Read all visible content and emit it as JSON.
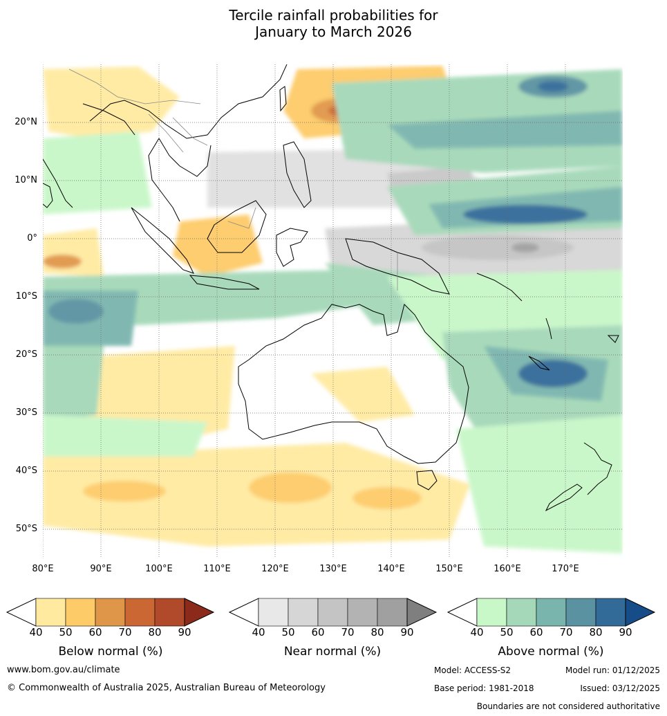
{
  "title_line1": "Tercile rainfall probabilities for",
  "title_line2": "January to March 2026",
  "latitude_labels": [
    "20°N",
    "10°N",
    "0°",
    "10°S",
    "20°S",
    "30°S",
    "40°S",
    "50°S"
  ],
  "longitude_labels": [
    "80°E",
    "90°E",
    "100°E",
    "110°E",
    "120°E",
    "130°E",
    "140°E",
    "150°E",
    "160°E",
    "170°E"
  ],
  "legends": [
    {
      "title": "Below normal (%)",
      "ticks": [
        "40",
        "50",
        "60",
        "70",
        "80",
        "90"
      ],
      "colors": [
        "#ffffff",
        "#ffeaa0",
        "#fdcb67",
        "#e09648",
        "#cb6733",
        "#b04a2a",
        "#8b2a1a"
      ]
    },
    {
      "title": "Near normal (%)",
      "ticks": [
        "40",
        "50",
        "60",
        "70",
        "80",
        "90"
      ],
      "colors": [
        "#ffffff",
        "#e8e8e8",
        "#d6d6d6",
        "#c4c4c4",
        "#b3b3b3",
        "#a0a0a0",
        "#7f7f7f"
      ]
    },
    {
      "title": "Above normal (%)",
      "ticks": [
        "40",
        "50",
        "60",
        "70",
        "80",
        "90"
      ],
      "colors": [
        "#ffffff",
        "#c8f7c8",
        "#a4d8b8",
        "#7ab5ad",
        "#5a92a1",
        "#326a98",
        "#164d88"
      ]
    }
  ],
  "footer": {
    "website": "www.bom.gov.au/climate",
    "copyright": "© Commonwealth of Australia 2025, Australian Bureau of Meteorology",
    "model": "Model: ACCESS-S2",
    "model_run": "Model run: 01/12/2025",
    "base_period": "Base period: 1981-2018",
    "issued": "Issued: 03/12/2025",
    "disclaimer": "Boundaries are not considered authoritative"
  }
}
